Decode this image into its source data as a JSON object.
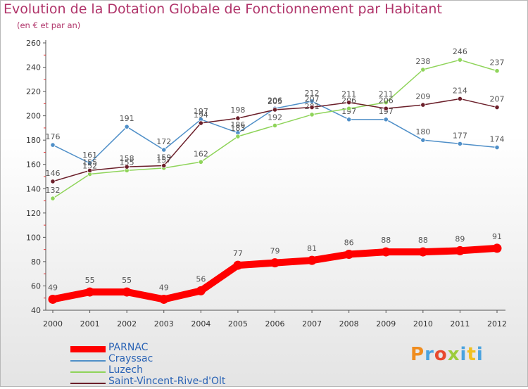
{
  "title": "Evolution de la Dotation Globale de Fonctionnement par Habitant",
  "subtitle": "(en € et par an)",
  "logo_text": "Proxiti",
  "chart_data": {
    "type": "line",
    "title": "Evolution de la Dotation Globale de Fonctionnement par Habitant",
    "subtitle": "(en € et par an)",
    "xlabel": "",
    "ylabel": "",
    "ylim": [
      40,
      260
    ],
    "yticks": [
      40,
      60,
      80,
      100,
      120,
      140,
      160,
      180,
      200,
      220,
      240,
      260
    ],
    "grid": false,
    "legend": "bottom-left",
    "categories": [
      "2000",
      "2001",
      "2002",
      "2003",
      "2004",
      "2005",
      "2006",
      "2007",
      "2008",
      "2009",
      "2010",
      "2011",
      "2012"
    ],
    "series": [
      {
        "name": "PARNAC",
        "color": "#ff0000",
        "values": [
          49,
          55,
          55,
          49,
          56,
          77,
          79,
          81,
          86,
          88,
          88,
          89,
          91
        ]
      },
      {
        "name": "Crayssac",
        "color": "#4f8fc8",
        "values": [
          176,
          161,
          191,
          172,
          197,
          186,
          206,
          212,
          197,
          197,
          180,
          177,
          174
        ]
      },
      {
        "name": "Luzech",
        "color": "#8fd45a",
        "values": [
          132,
          152,
          155,
          157,
          162,
          183,
          192,
          201,
          206,
          211,
          238,
          246,
          237
        ]
      },
      {
        "name": "Saint-Vincent-Rive-d'Olt",
        "color": "#6b1f2a",
        "values": [
          146,
          155,
          158,
          159,
          194,
          198,
          205,
          207,
          211,
          206,
          209,
          214,
          207
        ]
      }
    ]
  }
}
